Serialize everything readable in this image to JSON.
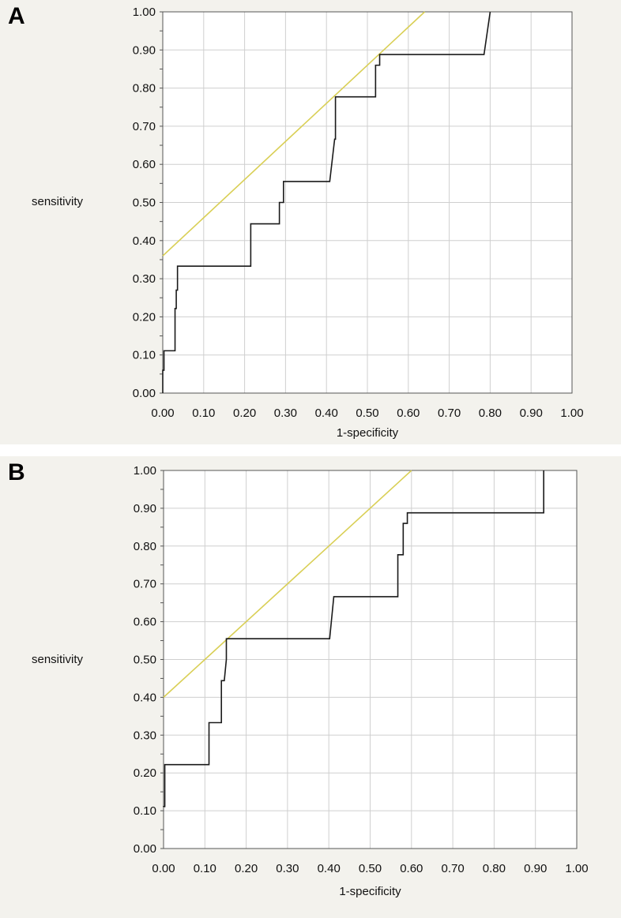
{
  "chart_data": [
    {
      "panel_label": "A",
      "type": "line",
      "xlabel": "1-specificity",
      "ylabel": "sensitivity",
      "xlim": [
        0,
        1
      ],
      "ylim": [
        0,
        1
      ],
      "grid": true,
      "ticks": [
        "0.00",
        "0.10",
        "0.20",
        "0.30",
        "0.40",
        "0.50",
        "0.60",
        "0.70",
        "0.80",
        "0.90",
        "1.00"
      ],
      "colors": {
        "roc": "#1a1a1a",
        "reference": "#d9cf55",
        "grid": "#cfcfcf",
        "plot_bg": "#ffffff"
      },
      "roc": {
        "x": [
          0,
          0,
          0.003,
          0.003,
          0.03,
          0.03,
          0.033,
          0.033,
          0.036,
          0.036,
          0.215,
          0.215,
          0.285,
          0.285,
          0.295,
          0.295,
          0.408,
          0.42,
          0.422,
          0.422,
          0.52,
          0.52,
          0.53,
          0.53,
          0.785,
          0.8
        ],
        "y": [
          0,
          0.06,
          0.06,
          0.111,
          0.111,
          0.222,
          0.222,
          0.27,
          0.27,
          0.333,
          0.333,
          0.444,
          0.444,
          0.5,
          0.5,
          0.555,
          0.555,
          0.666,
          0.666,
          0.777,
          0.777,
          0.86,
          0.86,
          0.888,
          0.888,
          1.0
        ]
      },
      "reference": {
        "x": [
          0,
          0.64
        ],
        "y": [
          0.36,
          1.0
        ]
      }
    },
    {
      "panel_label": "B",
      "type": "line",
      "xlabel": "1-specificity",
      "ylabel": "sensitivity",
      "xlim": [
        0,
        1
      ],
      "ylim": [
        0,
        1
      ],
      "grid": true,
      "ticks": [
        "0.00",
        "0.10",
        "0.20",
        "0.30",
        "0.40",
        "0.50",
        "0.60",
        "0.70",
        "0.80",
        "0.90",
        "1.00"
      ],
      "colors": {
        "roc": "#1a1a1a",
        "reference": "#d9cf55",
        "grid": "#cfcfcf",
        "plot_bg": "#ffffff"
      },
      "roc": {
        "x": [
          0,
          0,
          0.003,
          0.003,
          0.11,
          0.11,
          0.14,
          0.14,
          0.147,
          0.152,
          0.152,
          0.402,
          0.412,
          0.412,
          0.567,
          0.567,
          0.58,
          0.58,
          0.59,
          0.59,
          0.92,
          0.92
        ],
        "y": [
          0.11,
          0.111,
          0.111,
          0.222,
          0.222,
          0.333,
          0.333,
          0.444,
          0.444,
          0.5,
          0.555,
          0.555,
          0.666,
          0.666,
          0.666,
          0.777,
          0.777,
          0.86,
          0.86,
          0.888,
          0.888,
          1.0
        ]
      },
      "reference": {
        "x": [
          0,
          0.6
        ],
        "y": [
          0.4,
          1.0
        ]
      }
    }
  ]
}
